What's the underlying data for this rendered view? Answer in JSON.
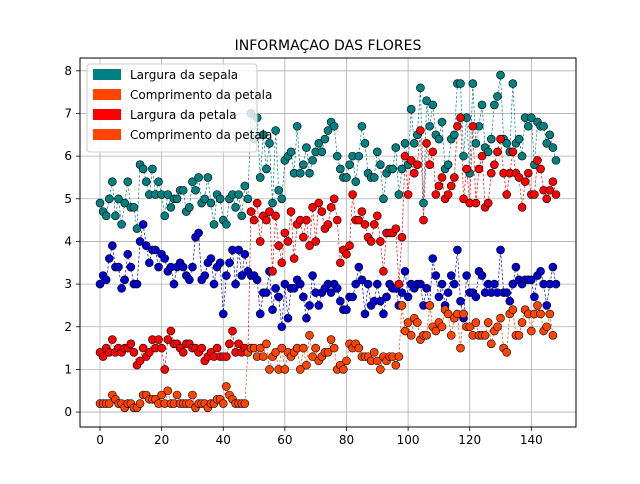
{
  "chart_data": {
    "type": "scatter",
    "title": "INFORMAÇAO DAS FLORES",
    "xlabel": "",
    "ylabel": "",
    "xlim": [
      -6.5,
      154.5
    ],
    "ylim": [
      -0.35,
      8.3
    ],
    "xticks": [
      0,
      20,
      40,
      60,
      80,
      100,
      120,
      140
    ],
    "yticks": [
      0,
      1,
      2,
      3,
      4,
      5,
      6,
      7,
      8
    ],
    "grid": true,
    "legend_position": "top-left",
    "legend": [
      {
        "label": "Largura da sepala",
        "color": "#008080"
      },
      {
        "label": "Comprimento da petala",
        "color": "#ff4500"
      },
      {
        "label": "Largura da petala",
        "color": "#ff0000"
      },
      {
        "label": "Comprimento da petala",
        "color": "#ff4500"
      }
    ],
    "series": [
      {
        "color": "#008080",
        "values": [
          4.9,
          4.7,
          4.6,
          5.0,
          5.4,
          4.6,
          5.0,
          4.4,
          4.9,
          5.4,
          4.8,
          4.8,
          4.3,
          5.8,
          5.7,
          5.4,
          5.1,
          5.7,
          5.1,
          5.4,
          5.1,
          4.6,
          5.1,
          4.8,
          5.0,
          5.0,
          5.2,
          5.2,
          4.7,
          4.8,
          5.4,
          5.2,
          5.5,
          4.9,
          5.0,
          5.5,
          4.9,
          4.4,
          5.1,
          5.0,
          4.5,
          4.4,
          5.0,
          5.1,
          4.8,
          5.1,
          4.6,
          5.3,
          5.0,
          7.0,
          6.4,
          6.9,
          5.5,
          6.5,
          5.7,
          6.3,
          4.9,
          6.6,
          5.2,
          5.0,
          5.9,
          6.0,
          6.1,
          5.6,
          6.7,
          5.6,
          5.8,
          6.2,
          5.6,
          5.9,
          6.1,
          6.3,
          6.1,
          6.4,
          6.6,
          6.8,
          6.7,
          6.0,
          5.7,
          5.5,
          5.5,
          5.8,
          6.0,
          5.4,
          6.0,
          6.7,
          6.3,
          5.6,
          5.5,
          5.5,
          6.1,
          5.8,
          5.0,
          5.6,
          5.7,
          5.7,
          6.2,
          5.1,
          5.7,
          6.3,
          5.8,
          7.1,
          6.3,
          6.5,
          7.6,
          4.9,
          7.3,
          6.7,
          7.2,
          6.5,
          6.4,
          6.8,
          5.7,
          5.8,
          6.4,
          6.5,
          7.7,
          7.7,
          6.0,
          6.9,
          5.6,
          7.7,
          6.3,
          6.7,
          7.2,
          6.2,
          6.1,
          6.4,
          7.2,
          7.4,
          7.9,
          6.4,
          6.3,
          6.1,
          7.7,
          6.3,
          6.4,
          6.0,
          6.9,
          6.7,
          6.9,
          5.8,
          6.8,
          6.7,
          6.7,
          6.3,
          6.5,
          6.2,
          5.9
        ]
      },
      {
        "color": "#0000cd",
        "values": [
          3.0,
          3.2,
          3.1,
          3.6,
          3.9,
          3.4,
          3.4,
          2.9,
          3.1,
          3.7,
          3.4,
          3.0,
          3.0,
          4.0,
          4.4,
          3.9,
          3.5,
          3.8,
          3.8,
          3.4,
          3.7,
          3.6,
          3.3,
          3.4,
          3.0,
          3.4,
          3.5,
          3.4,
          3.2,
          3.1,
          3.4,
          4.1,
          4.2,
          3.1,
          3.2,
          3.5,
          3.6,
          3.0,
          3.4,
          3.5,
          2.3,
          3.2,
          3.5,
          3.8,
          3.0,
          3.8,
          3.2,
          3.7,
          3.3,
          3.2,
          3.2,
          3.1,
          2.3,
          2.8,
          2.8,
          3.3,
          2.4,
          2.9,
          2.7,
          2.0,
          3.0,
          2.2,
          2.9,
          2.9,
          3.1,
          3.0,
          2.7,
          2.2,
          2.5,
          3.2,
          2.8,
          2.5,
          2.8,
          2.9,
          3.0,
          2.8,
          3.0,
          2.9,
          2.6,
          2.4,
          2.4,
          2.7,
          2.7,
          3.0,
          3.4,
          3.1,
          2.3,
          3.0,
          2.5,
          2.6,
          3.0,
          2.6,
          2.3,
          2.7,
          3.0,
          2.9,
          2.9,
          2.5,
          2.8,
          3.3,
          2.7,
          3.0,
          2.9,
          3.0,
          3.0,
          2.5,
          2.9,
          2.5,
          3.6,
          3.2,
          2.7,
          3.0,
          2.5,
          2.8,
          3.2,
          3.0,
          3.8,
          2.6,
          2.2,
          3.2,
          2.8,
          2.8,
          2.7,
          3.3,
          3.2,
          2.8,
          3.0,
          2.8,
          3.0,
          2.8,
          3.8,
          2.8,
          2.8,
          2.6,
          3.0,
          3.4,
          3.1,
          3.0,
          3.1,
          3.1,
          3.1,
          2.7,
          3.2,
          3.3,
          3.0,
          2.5,
          3.0,
          3.4,
          3.0
        ]
      },
      {
        "color": "#ff0000",
        "values": [
          1.4,
          1.3,
          1.5,
          1.4,
          1.7,
          1.4,
          1.5,
          1.4,
          1.5,
          1.5,
          1.6,
          1.4,
          1.1,
          1.2,
          1.5,
          1.3,
          1.4,
          1.7,
          1.5,
          1.7,
          1.5,
          1.0,
          1.7,
          1.9,
          1.6,
          1.6,
          1.5,
          1.4,
          1.6,
          1.6,
          1.5,
          1.5,
          1.4,
          1.5,
          1.2,
          1.3,
          1.4,
          1.3,
          1.5,
          1.3,
          1.3,
          1.3,
          1.6,
          1.9,
          1.4,
          1.6,
          1.4,
          1.5,
          1.4,
          4.7,
          4.5,
          4.9,
          4.0,
          4.6,
          4.5,
          4.7,
          3.3,
          4.6,
          3.9,
          3.5,
          4.2,
          4.0,
          4.7,
          3.6,
          4.4,
          4.5,
          4.1,
          4.5,
          3.9,
          4.8,
          4.0,
          4.9,
          4.7,
          4.3,
          4.4,
          4.8,
          5.0,
          4.5,
          3.5,
          3.8,
          3.7,
          3.9,
          5.1,
          4.5,
          4.5,
          4.7,
          4.4,
          4.1,
          4.0,
          4.4,
          4.6,
          4.0,
          3.3,
          4.2,
          4.2,
          4.2,
          4.3,
          3.0,
          4.1,
          6.0,
          5.1,
          5.9,
          5.6,
          5.8,
          6.6,
          4.5,
          6.3,
          5.8,
          6.1,
          5.1,
          5.3,
          5.5,
          5.0,
          5.1,
          5.3,
          5.5,
          6.7,
          6.9,
          5.0,
          5.7,
          4.9,
          6.7,
          4.9,
          5.7,
          6.0,
          4.8,
          4.9,
          5.6,
          5.8,
          6.1,
          6.4,
          5.6,
          5.1,
          5.6,
          6.1,
          5.6,
          5.5,
          4.8,
          5.4,
          5.6,
          5.1,
          5.1,
          5.9,
          5.7,
          5.2,
          5.0,
          5.2,
          5.4,
          5.1
        ]
      },
      {
        "color": "#ff4500",
        "values": [
          0.2,
          0.2,
          0.2,
          0.2,
          0.4,
          0.3,
          0.2,
          0.2,
          0.1,
          0.2,
          0.2,
          0.1,
          0.1,
          0.2,
          0.4,
          0.4,
          0.3,
          0.3,
          0.3,
          0.2,
          0.4,
          0.2,
          0.5,
          0.2,
          0.2,
          0.4,
          0.2,
          0.2,
          0.2,
          0.2,
          0.4,
          0.1,
          0.2,
          0.2,
          0.2,
          0.1,
          0.2,
          0.2,
          0.3,
          0.3,
          0.2,
          0.6,
          0.4,
          0.3,
          0.2,
          0.2,
          0.2,
          0.2,
          1.4,
          1.5,
          1.5,
          1.3,
          1.5,
          1.3,
          1.6,
          1.0,
          1.3,
          1.4,
          1.0,
          1.5,
          1.0,
          1.4,
          1.3,
          1.4,
          1.5,
          1.0,
          1.5,
          1.1,
          1.8,
          1.3,
          1.5,
          1.2,
          1.3,
          1.4,
          1.4,
          1.7,
          1.5,
          1.0,
          1.1,
          1.0,
          1.2,
          1.6,
          1.5,
          1.6,
          1.5,
          1.3,
          1.3,
          1.3,
          1.2,
          1.4,
          1.2,
          1.0,
          1.3,
          1.2,
          1.3,
          1.3,
          1.1,
          1.3,
          2.5,
          1.9,
          2.1,
          1.8,
          2.2,
          2.1,
          1.7,
          1.8,
          1.8,
          2.5,
          2.0,
          1.9,
          2.1,
          2.0,
          2.4,
          2.3,
          1.8,
          2.2,
          2.3,
          1.5,
          2.3,
          2.0,
          2.0,
          1.8,
          2.1,
          1.8,
          1.8,
          1.8,
          2.1,
          1.6,
          1.9,
          2.0,
          2.2,
          1.5,
          1.4,
          2.3,
          2.4,
          1.8,
          1.8,
          2.1,
          2.4,
          2.3,
          1.9,
          2.3,
          2.5,
          2.3,
          1.9,
          2.0,
          2.3,
          1.8
        ]
      }
    ]
  }
}
